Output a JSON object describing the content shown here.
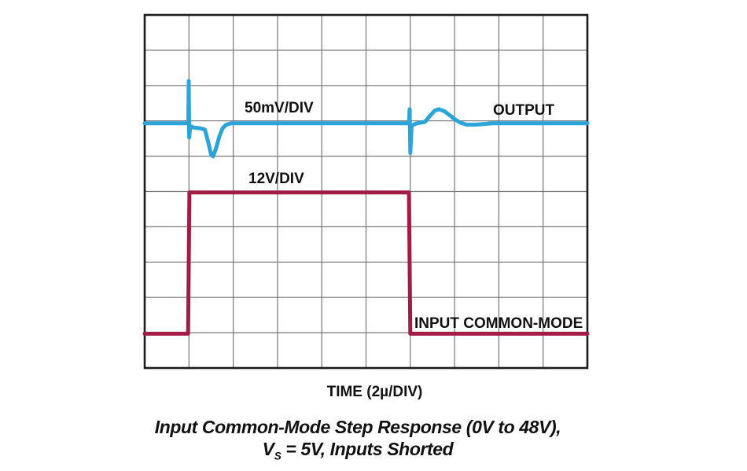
{
  "caption": {
    "line1": "Input Common-Mode Step Response (0V to 48V),",
    "line2_prefix": "V",
    "line2_sub": "S",
    "line2_rest": " = 5V, Inputs Shorted"
  },
  "colors": {
    "grid_line": "#777777",
    "plot_border": "#1b1b1b",
    "text": "#111111"
  },
  "chart_data": {
    "type": "line",
    "title": "Input Common-Mode Step Response (0V to 48V), VS = 5V, Inputs Shorted",
    "xlabel": "TIME (2µ/DIV)",
    "x_divisions": 10,
    "y_divisions": 10,
    "time_per_div_us": 2,
    "x_range_us": [
      0,
      20
    ],
    "grid": true,
    "legend_position": "inline-annotations",
    "series": [
      {
        "name": "OUTPUT",
        "scale_label": "50mV/DIV",
        "units": "mV",
        "per_div": 50,
        "zero_at_div_from_top": 3.07,
        "color": "#2BA5D9",
        "points": [
          [
            0,
            0
          ],
          [
            1.9,
            0
          ],
          [
            1.97,
            0
          ],
          [
            1.99,
            60
          ],
          [
            2.01,
            -20
          ],
          [
            2.06,
            -4
          ],
          [
            2.2,
            -6
          ],
          [
            2.5,
            -7
          ],
          [
            2.72,
            -9
          ],
          [
            2.88,
            -28
          ],
          [
            3.0,
            -44
          ],
          [
            3.09,
            -47
          ],
          [
            3.22,
            -36
          ],
          [
            3.38,
            -18
          ],
          [
            3.52,
            -7
          ],
          [
            3.68,
            -2
          ],
          [
            3.9,
            0
          ],
          [
            7,
            0
          ],
          [
            11.85,
            0
          ],
          [
            11.94,
            0
          ],
          [
            11.97,
            20
          ],
          [
            12.0,
            -42
          ],
          [
            12.06,
            -3
          ],
          [
            12.3,
            0
          ],
          [
            12.66,
            2
          ],
          [
            12.9,
            11
          ],
          [
            13.1,
            18
          ],
          [
            13.3,
            20
          ],
          [
            13.55,
            17
          ],
          [
            13.8,
            11
          ],
          [
            14.0,
            6
          ],
          [
            14.25,
            1
          ],
          [
            14.55,
            -2
          ],
          [
            14.9,
            -2
          ],
          [
            15.3,
            -1
          ],
          [
            15.7,
            0
          ],
          [
            17,
            0
          ],
          [
            20,
            0
          ]
        ]
      },
      {
        "name": "INPUT COMMON-MODE",
        "scale_label": "12V/DIV",
        "units": "V",
        "per_div": 12,
        "zero_at_div_from_top": 9.03,
        "color": "#A31C45",
        "points": [
          [
            0,
            0
          ],
          [
            1.96,
            0
          ],
          [
            2.02,
            48
          ],
          [
            11.94,
            48
          ],
          [
            12.0,
            0
          ],
          [
            20,
            0
          ]
        ]
      }
    ]
  }
}
